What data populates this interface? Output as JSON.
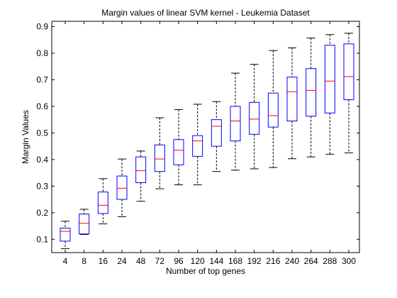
{
  "chart_data": {
    "type": "box",
    "title": "Margin values of linear SVM kernel - Leukemia Dataset",
    "xlabel": "Number of top genes",
    "ylabel": "Margin Values",
    "ylim": [
      0.05,
      0.92
    ],
    "yticks": [
      0.1,
      0.2,
      0.3,
      0.4,
      0.5,
      0.6,
      0.7,
      0.8,
      0.9
    ],
    "yticklabels": [
      "0.1",
      "0.2",
      "0.3",
      "0.4",
      "0.5",
      "0.6",
      "0.7",
      "0.8",
      "0.9"
    ],
    "categories": [
      "4",
      "8",
      "16",
      "24",
      "48",
      "72",
      "96",
      "120",
      "144",
      "168",
      "192",
      "216",
      "240",
      "264",
      "288",
      "300"
    ],
    "boxes": [
      {
        "min": 0.065,
        "q1": 0.093,
        "median": 0.13,
        "q3": 0.142,
        "max": 0.168
      },
      {
        "min": 0.118,
        "q1": 0.12,
        "median": 0.16,
        "q3": 0.195,
        "max": 0.213
      },
      {
        "min": 0.158,
        "q1": 0.197,
        "median": 0.228,
        "q3": 0.278,
        "max": 0.328
      },
      {
        "min": 0.185,
        "q1": 0.25,
        "median": 0.292,
        "q3": 0.338,
        "max": 0.402
      },
      {
        "min": 0.243,
        "q1": 0.313,
        "median": 0.358,
        "q3": 0.41,
        "max": 0.432
      },
      {
        "min": 0.29,
        "q1": 0.355,
        "median": 0.402,
        "q3": 0.455,
        "max": 0.557
      },
      {
        "min": 0.305,
        "q1": 0.38,
        "median": 0.435,
        "q3": 0.475,
        "max": 0.588
      },
      {
        "min": 0.305,
        "q1": 0.412,
        "median": 0.47,
        "q3": 0.49,
        "max": 0.608
      },
      {
        "min": 0.355,
        "q1": 0.45,
        "median": 0.525,
        "q3": 0.55,
        "max": 0.618
      },
      {
        "min": 0.36,
        "q1": 0.47,
        "median": 0.545,
        "q3": 0.6,
        "max": 0.725
      },
      {
        "min": 0.365,
        "q1": 0.495,
        "median": 0.552,
        "q3": 0.615,
        "max": 0.758
      },
      {
        "min": 0.37,
        "q1": 0.522,
        "median": 0.565,
        "q3": 0.65,
        "max": 0.81
      },
      {
        "min": 0.403,
        "q1": 0.545,
        "median": 0.655,
        "q3": 0.71,
        "max": 0.82
      },
      {
        "min": 0.41,
        "q1": 0.563,
        "median": 0.66,
        "q3": 0.742,
        "max": 0.857
      },
      {
        "min": 0.42,
        "q1": 0.575,
        "median": 0.695,
        "q3": 0.83,
        "max": 0.87
      },
      {
        "min": 0.425,
        "q1": 0.625,
        "median": 0.712,
        "q3": 0.835,
        "max": 0.875
      }
    ],
    "colors": {
      "box": "#0000ff",
      "median": "#ff0000",
      "whisker": "#000000",
      "axis": "#000000"
    },
    "grid": false
  }
}
